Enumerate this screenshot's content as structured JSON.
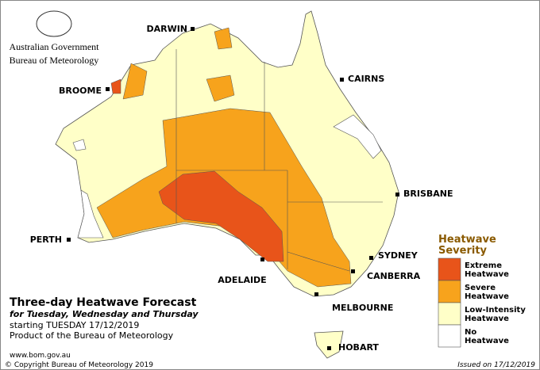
{
  "header": {
    "government": "Australian Government",
    "bureau": "Bureau of Meteorology"
  },
  "cities": [
    "DARWIN",
    "CAIRNS",
    "BROOME",
    "BRISBANE",
    "PERTH",
    "SYDNEY",
    "CANBERRA",
    "ADELAIDE",
    "MELBOURNE",
    "HOBART"
  ],
  "legend": {
    "title": "Heatwave Severity",
    "items": [
      {
        "label": "Extreme Heatwave",
        "color": "#e8541a"
      },
      {
        "label": "Severe Heatwave",
        "color": "#f7a31c"
      },
      {
        "label": "Low-Intensity Heatwave",
        "color": "#ffffc8"
      },
      {
        "label": "No Heatwave",
        "color": "#ffffff"
      }
    ]
  },
  "info": {
    "title": "Three-day Heatwave Forecast",
    "subtitle": "for Tuesday, Wednesday and Thursday",
    "start": "starting TUESDAY 17/12/2019",
    "product": "Product of the Bureau of Meteorology",
    "url": "www.bom.gov.au"
  },
  "footer": {
    "copyright": "© Copyright Bureau of Meteorology 2019",
    "issued": "Issued on 17/12/2019"
  }
}
